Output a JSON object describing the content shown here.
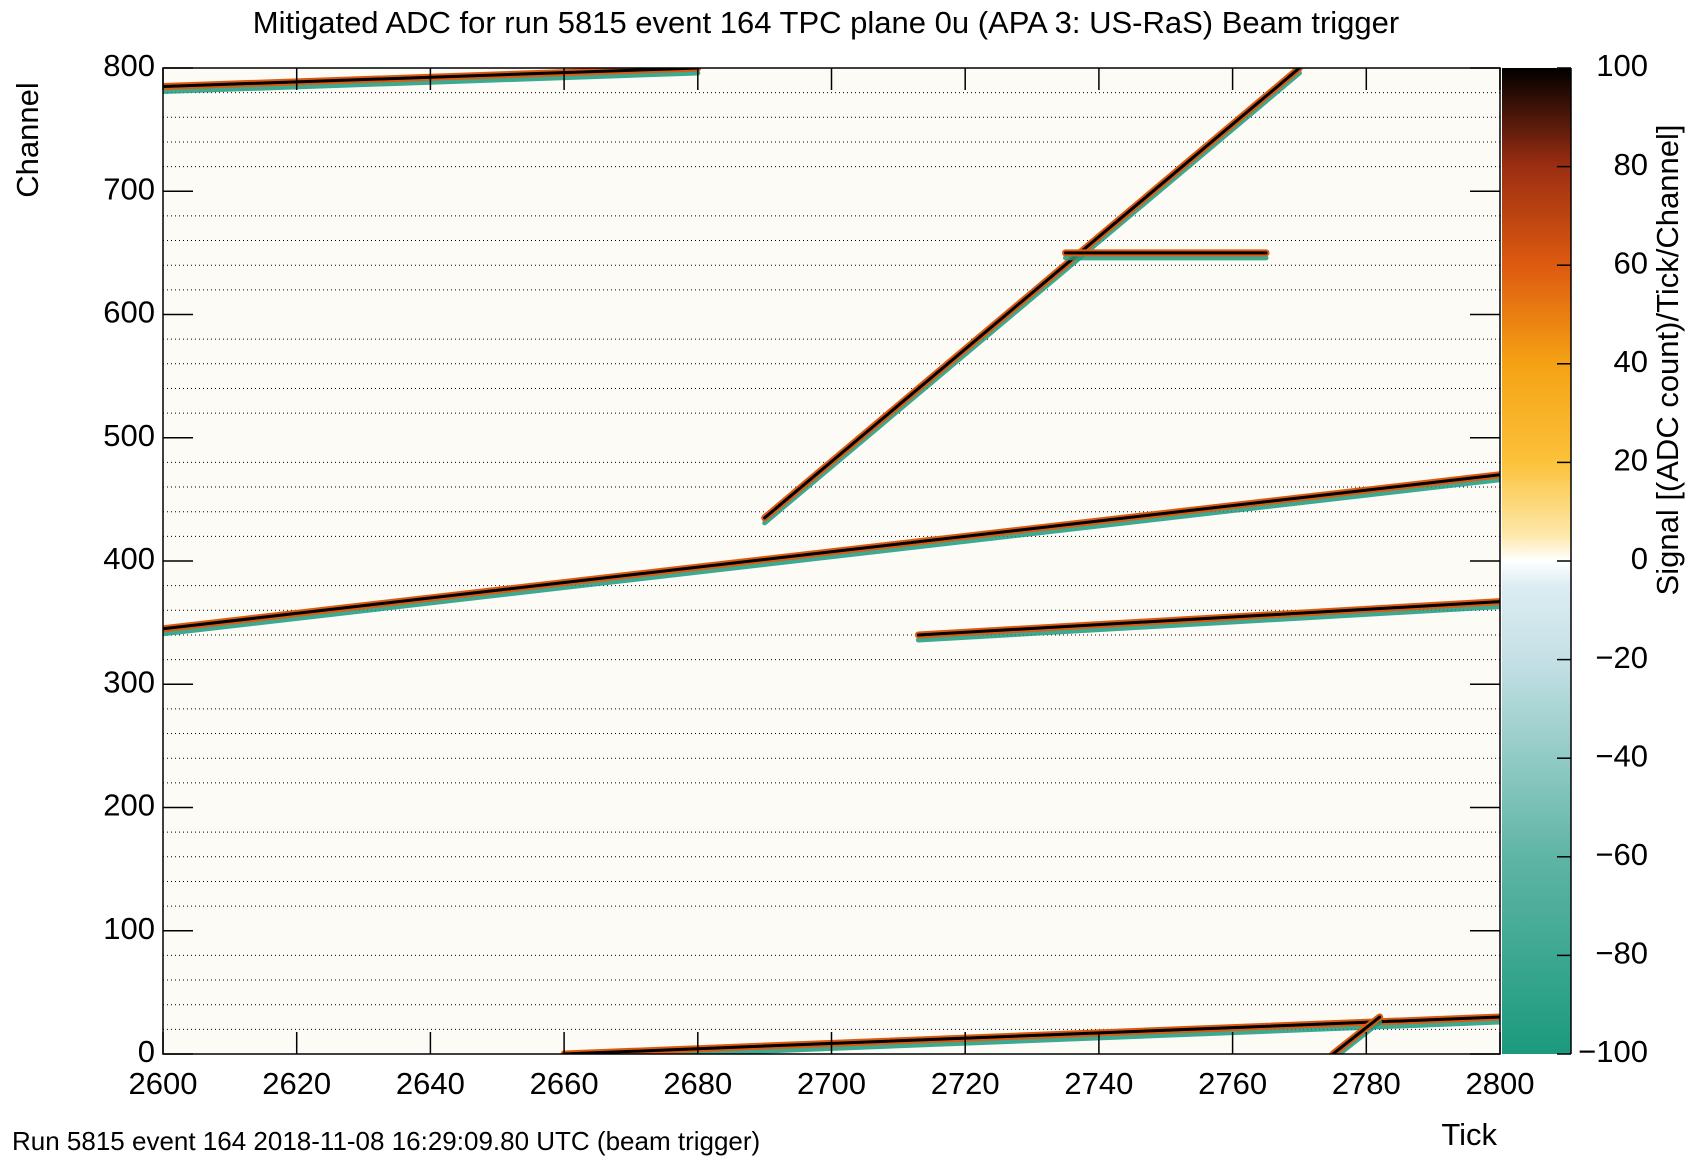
{
  "chart_data": {
    "type": "heatmap",
    "title": "Mitigated ADC for run 5815 event 164 TPC plane 0u (APA 3: US-RaS) Beam trigger",
    "x_label": "Tick",
    "y_label": "Channel",
    "z_label": "Signal [(ADC count)/Tick/Channel]",
    "footer": "Run 5815 event 164 2018-11-08 16:29:09.80 UTC (beam trigger)",
    "xlim": [
      2600,
      2800
    ],
    "xticks": [
      2600,
      2620,
      2640,
      2660,
      2680,
      2700,
      2720,
      2740,
      2760,
      2780,
      2800
    ],
    "ylim": [
      0,
      800
    ],
    "yticks": [
      0,
      100,
      200,
      300,
      400,
      500,
      600,
      700,
      800
    ],
    "ygrid": [
      20,
      40,
      60,
      80,
      120,
      140,
      160,
      180,
      220,
      240,
      260,
      280,
      320,
      340,
      360,
      380,
      420,
      440,
      460,
      480,
      520,
      540,
      560,
      580,
      620,
      640,
      660,
      680,
      720,
      740,
      760,
      780
    ],
    "zlim": [
      -100,
      100
    ],
    "zticks": [
      {
        "value": -100,
        "label": "−100"
      },
      {
        "value": -80,
        "label": "−80"
      },
      {
        "value": -60,
        "label": "−60"
      },
      {
        "value": -40,
        "label": "−40"
      },
      {
        "value": -20,
        "label": "−20"
      },
      0,
      20,
      40,
      60,
      80,
      100
    ],
    "colorscale": [
      {
        "value": -100,
        "color": "#1b9a7e"
      },
      {
        "value": -60,
        "color": "#5fb5a5"
      },
      {
        "value": -20,
        "color": "#c4e0e6"
      },
      {
        "value": -5,
        "color": "#dcedf2"
      },
      {
        "value": 0,
        "color": "#ffffff"
      },
      {
        "value": 5,
        "color": "#fde9ad"
      },
      {
        "value": 20,
        "color": "#fcc23a"
      },
      {
        "value": 40,
        "color": "#f5a214"
      },
      {
        "value": 60,
        "color": "#dd5a10"
      },
      {
        "value": 80,
        "color": "#9c2e12"
      },
      {
        "value": 100,
        "color": "#000000"
      }
    ],
    "tracks": [
      {
        "x": [
          2600,
          2800
        ],
        "y": [
          345,
          470
        ]
      },
      {
        "x": [
          2713,
          2800
        ],
        "y": [
          340,
          367
        ]
      },
      {
        "x": [
          2690,
          2770
        ],
        "y": [
          435,
          800
        ]
      },
      {
        "x": [
          2600,
          2680
        ],
        "y": [
          785,
          800
        ]
      },
      {
        "x": [
          2660,
          2800
        ],
        "y": [
          0,
          30
        ]
      },
      {
        "x": [
          2775,
          2782
        ],
        "y": [
          0,
          30
        ]
      },
      {
        "x": [
          2735,
          2765
        ],
        "y": [
          650,
          650
        ]
      }
    ]
  }
}
